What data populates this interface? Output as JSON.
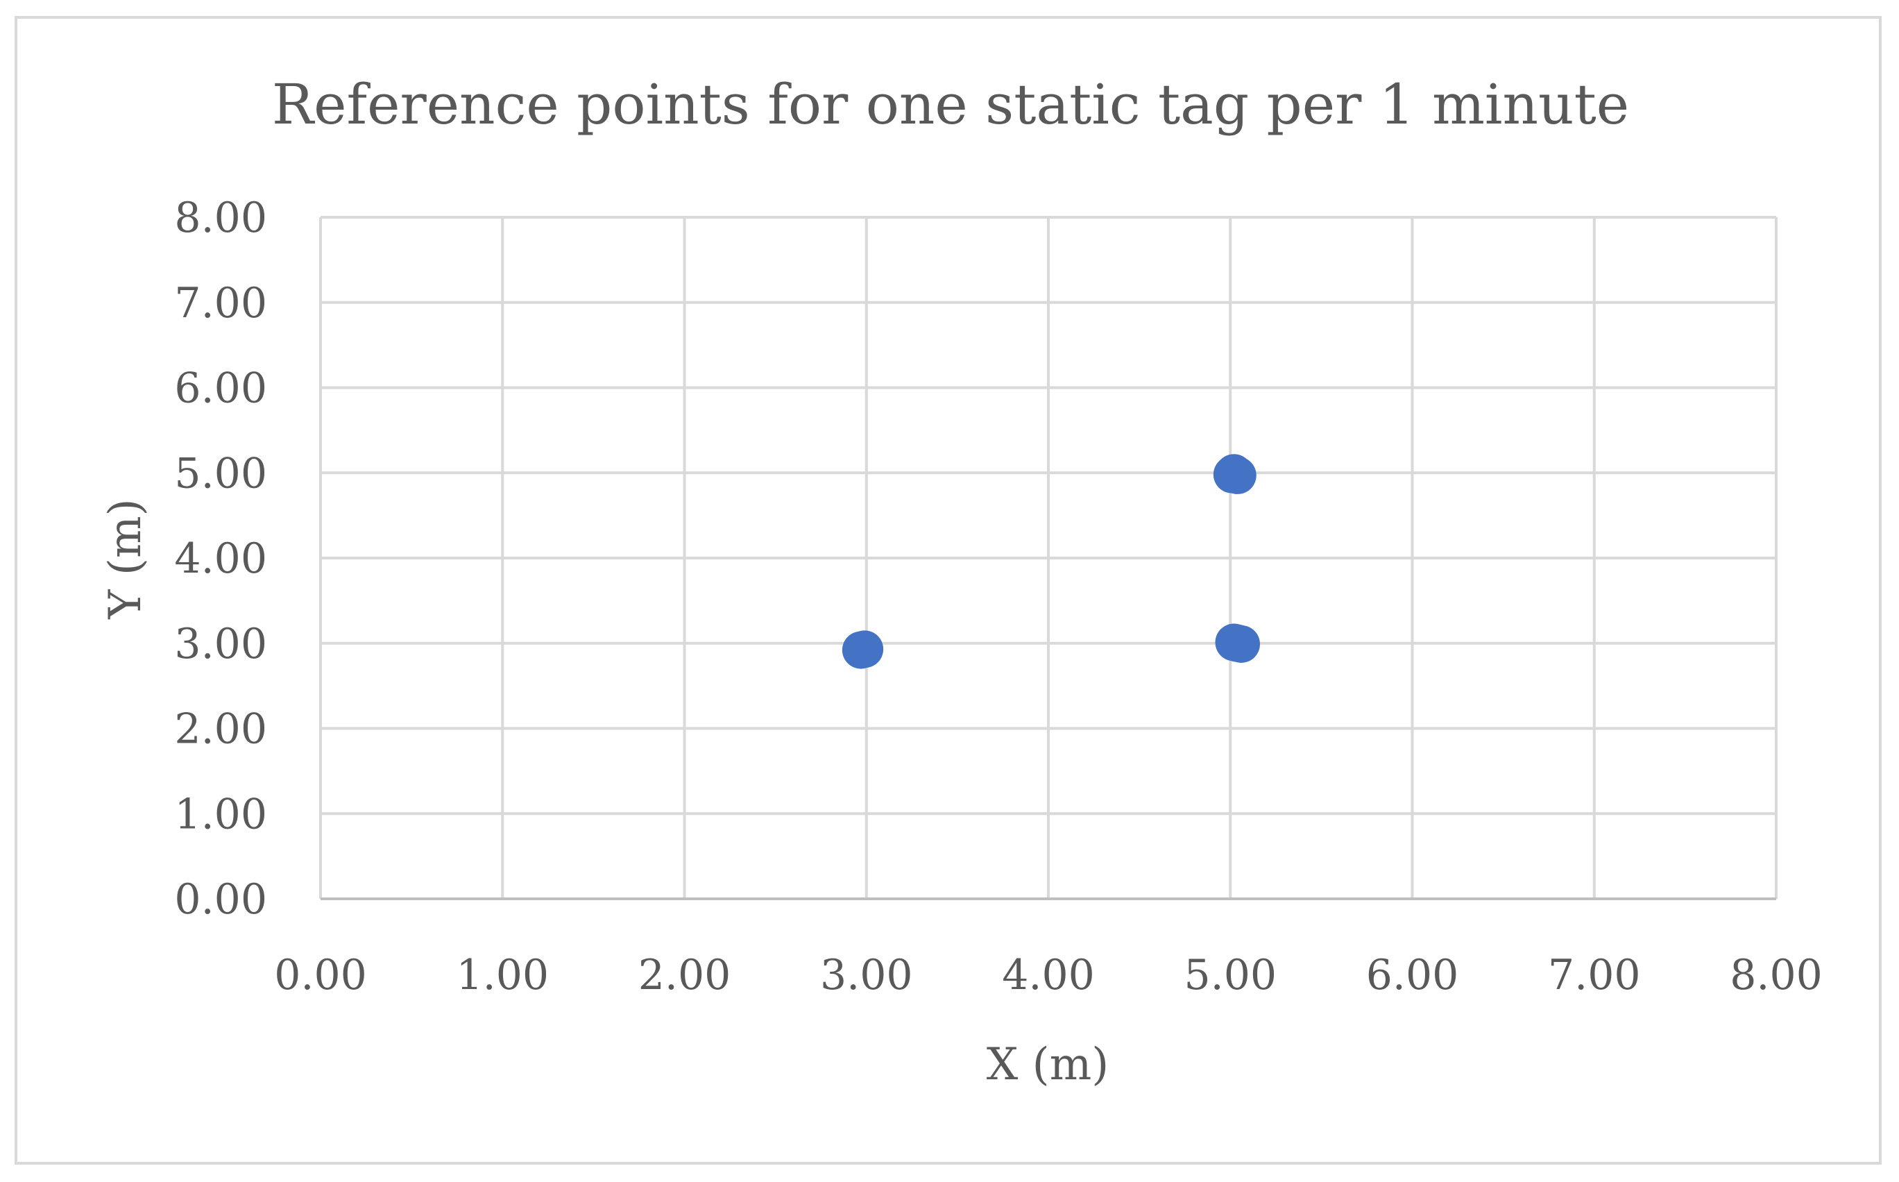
{
  "chart_data": {
    "type": "scatter",
    "title": "Reference points for one static tag per 1 minute",
    "xlabel": "X (m)",
    "ylabel": "Y (m)",
    "xlim": [
      0,
      8
    ],
    "ylim": [
      0,
      8
    ],
    "x_tick_labels": [
      "0.00",
      "1.00",
      "2.00",
      "3.00",
      "4.00",
      "5.00",
      "6.00",
      "7.00",
      "8.00"
    ],
    "y_tick_labels": [
      "0.00",
      "1.00",
      "2.00",
      "3.00",
      "4.00",
      "5.00",
      "6.00",
      "7.00",
      "8.00"
    ],
    "grid": true,
    "legend": "none",
    "series": [
      {
        "color": "#4472c4",
        "points": [
          {
            "x": 2.97,
            "y": 2.92
          },
          {
            "x": 2.99,
            "y": 2.93
          },
          {
            "x": 5.01,
            "y": 4.98
          },
          {
            "x": 5.04,
            "y": 4.97
          },
          {
            "x": 5.02,
            "y": 5.0
          },
          {
            "x": 5.02,
            "y": 3.01
          },
          {
            "x": 5.06,
            "y": 2.99
          },
          {
            "x": 5.04,
            "y": 3.0
          }
        ]
      }
    ],
    "gridline_color": "#d9d9d9"
  }
}
